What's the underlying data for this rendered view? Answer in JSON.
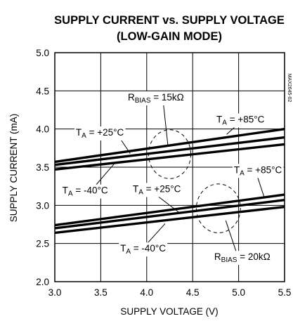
{
  "chart_data": {
    "type": "line",
    "title": "SUPPLY CURRENT vs. SUPPLY VOLTAGE",
    "subtitle": "(LOW-GAIN MODE)",
    "xlabel": "SUPPLY VOLTAGE (V)",
    "ylabel": "SUPPLY CURRENT (mA)",
    "xlim": [
      3.0,
      5.5
    ],
    "ylim": [
      2.0,
      5.0
    ],
    "x_ticks": [
      "3.0",
      "3.5",
      "4.0",
      "4.5",
      "5.0",
      "5.5"
    ],
    "y_ticks": [
      "2.0",
      "2.5",
      "3.0",
      "3.5",
      "4.0",
      "4.5",
      "5.0"
    ],
    "grid": true,
    "side_label": "MAX2645-02",
    "series": [
      {
        "name": "",
        "x": [
          3.0,
          5.5
        ],
        "y": [
          3.57,
          4.0
        ]
      },
      {
        "name": "",
        "x": [
          3.0,
          5.5
        ],
        "y": [
          3.53,
          3.89
        ]
      },
      {
        "name": "",
        "x": [
          3.0,
          5.5
        ],
        "y": [
          3.47,
          3.8
        ]
      },
      {
        "name": "",
        "x": [
          3.0,
          5.5
        ],
        "y": [
          2.74,
          3.14
        ]
      },
      {
        "name": "",
        "x": [
          3.0,
          5.5
        ],
        "y": [
          2.7,
          3.07
        ]
      },
      {
        "name": "",
        "x": [
          3.0,
          5.5
        ],
        "y": [
          2.64,
          2.98
        ]
      }
    ],
    "annotations": [
      {
        "id": "rbias15",
        "base": "R",
        "sub": "BIAS",
        "rest": " = 15kΩ",
        "x": 4.1,
        "y": 4.42
      },
      {
        "id": "ta85_top",
        "base": "T",
        "sub": "A",
        "rest": " = +85°C",
        "x": 5.02,
        "y": 4.13
      },
      {
        "id": "ta25_top",
        "base": "T",
        "sub": "A",
        "rest": " = +25°C",
        "x": 3.49,
        "y": 3.96
      },
      {
        "id": "ta40_top",
        "base": "T",
        "sub": "A",
        "rest": " = -40°C",
        "x": 3.33,
        "y": 3.2
      },
      {
        "id": "ta25_mid",
        "base": "T",
        "sub": "A",
        "rest": " = +25°C",
        "x": 4.11,
        "y": 3.22
      },
      {
        "id": "ta85_bot",
        "base": "T",
        "sub": "A",
        "rest": " = +85°C",
        "x": 5.21,
        "y": 3.47
      },
      {
        "id": "ta40_bot",
        "base": "T",
        "sub": "A",
        "rest": " = -40°C",
        "x": 3.96,
        "y": 2.44
      },
      {
        "id": "rbias20",
        "base": "R",
        "sub": "BIAS",
        "rest": " = 20kΩ",
        "x": 5.04,
        "y": 2.33
      }
    ],
    "leaders": [
      {
        "from": [
          4.18,
          4.35
        ],
        "to": [
          4.23,
          3.79
        ]
      },
      {
        "from": [
          5.0,
          4.07
        ],
        "to": [
          4.87,
          3.93
        ]
      },
      {
        "from": [
          3.68,
          3.93
        ],
        "to": [
          3.82,
          3.68
        ]
      },
      {
        "from": [
          3.45,
          3.27
        ],
        "to": [
          3.65,
          3.55
        ]
      },
      {
        "from": [
          5.19,
          3.43
        ],
        "to": [
          5.28,
          3.1
        ]
      },
      {
        "from": [
          4.1,
          3.14
        ],
        "to": [
          4.37,
          2.89
        ]
      },
      {
        "from": [
          3.99,
          2.48
        ],
        "to": [
          4.2,
          2.76
        ]
      },
      {
        "from": [
          4.98,
          2.37
        ],
        "to": [
          4.86,
          2.8
        ]
      }
    ],
    "ellipses": [
      {
        "cx": 4.25,
        "cy": 3.67,
        "rx": 0.23,
        "ry": 0.32
      },
      {
        "cx": 4.78,
        "cy": 2.96,
        "rx": 0.24,
        "ry": 0.32
      }
    ]
  }
}
